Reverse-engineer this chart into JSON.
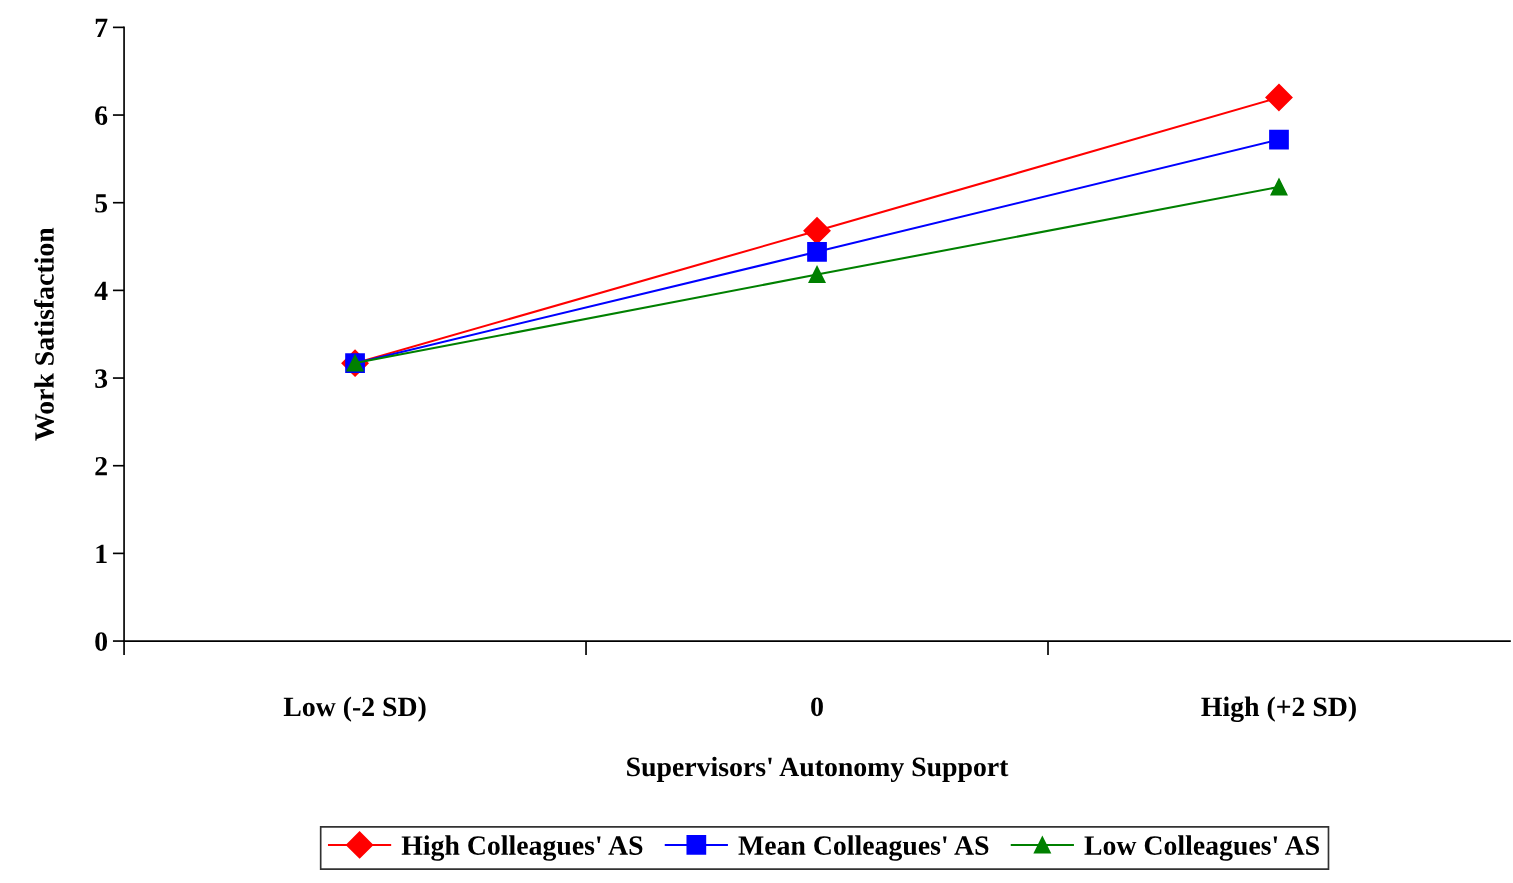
{
  "chart_data": {
    "type": "line",
    "xlabel": "Supervisors' Autonomy Support",
    "ylabel": "Work Satisfaction",
    "categories": [
      "Low (-2 SD)",
      "0",
      "High (+2 SD)"
    ],
    "series": [
      {
        "name": "High Colleagues' AS",
        "color": "#ff0000",
        "marker": "diamond",
        "values": [
          3.17,
          4.68,
          6.2
        ]
      },
      {
        "name": "Mean Colleagues' AS",
        "color": "#0000ff",
        "marker": "square",
        "values": [
          3.17,
          4.44,
          5.72
        ]
      },
      {
        "name": "Low Colleagues' AS",
        "color": "#008000",
        "marker": "triangle",
        "values": [
          3.17,
          4.18,
          5.18
        ]
      }
    ],
    "ylim": [
      0,
      7
    ],
    "yticks": [
      0,
      1,
      2,
      3,
      4,
      5,
      6,
      7
    ],
    "grid": false,
    "legend": "bottom",
    "line_style": "solid"
  }
}
